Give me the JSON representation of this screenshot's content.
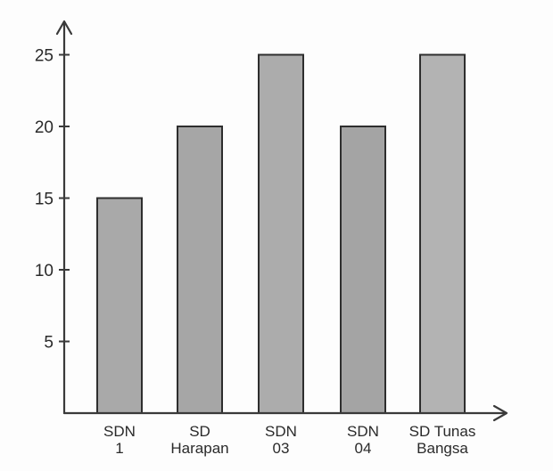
{
  "chart_data": {
    "type": "bar",
    "categories": [
      [
        "SDN",
        "1"
      ],
      [
        "SD",
        "Harapan"
      ],
      [
        "SDN",
        "03"
      ],
      [
        "SDN",
        "04"
      ],
      [
        "SD Tunas",
        "Bangsa"
      ]
    ],
    "values": [
      15,
      20,
      25,
      20,
      25
    ],
    "yticks": [
      5,
      10,
      15,
      20,
      25
    ],
    "ylim": [
      0,
      27.5
    ],
    "title": "",
    "xlabel": "",
    "ylabel": "",
    "grid": false,
    "bar_colors": [
      "#a9a9a9",
      "#a6a6a6",
      "#acacac",
      "#a4a4a4",
      "#b3b3b3"
    ],
    "axis_color": "#3a3a3a"
  }
}
